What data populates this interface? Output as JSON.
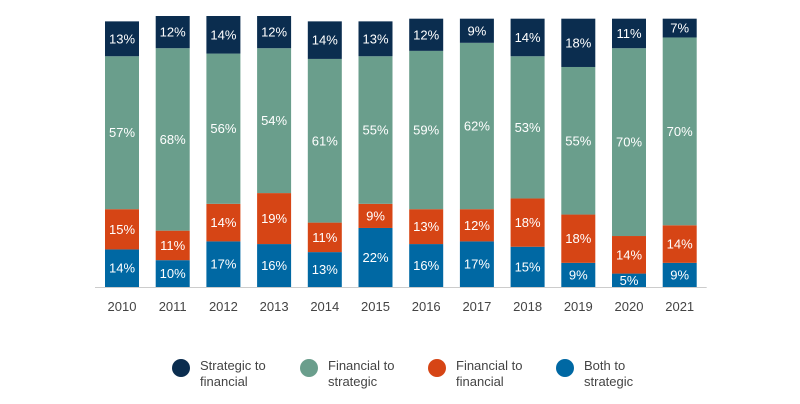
{
  "chart_data": {
    "type": "bar",
    "stacked": true,
    "categories": [
      "2010",
      "2011",
      "2012",
      "2013",
      "2014",
      "2015",
      "2016",
      "2017",
      "2018",
      "2019",
      "2020",
      "2021"
    ],
    "series": [
      {
        "name": "Both to strategic",
        "color": "#0068a3",
        "values": [
          14,
          10,
          17,
          16,
          13,
          22,
          16,
          17,
          15,
          9,
          5,
          9
        ]
      },
      {
        "name": "Financial to financial",
        "color": "#d64515",
        "values": [
          15,
          11,
          14,
          19,
          11,
          9,
          13,
          12,
          18,
          18,
          14,
          14
        ]
      },
      {
        "name": "Financial to strategic",
        "color": "#6a9e8c",
        "values": [
          57,
          68,
          56,
          54,
          61,
          55,
          59,
          62,
          53,
          55,
          70,
          70
        ]
      },
      {
        "name": "Strategic to financial",
        "color": "#0b2d4f",
        "values": [
          13,
          12,
          14,
          12,
          14,
          13,
          12,
          9,
          14,
          18,
          11,
          7
        ]
      }
    ],
    "value_suffix": "%",
    "ylim": [
      0,
      101
    ],
    "grid": false,
    "legend_position": "bottom",
    "legend_order": [
      3,
      2,
      1,
      0
    ]
  }
}
